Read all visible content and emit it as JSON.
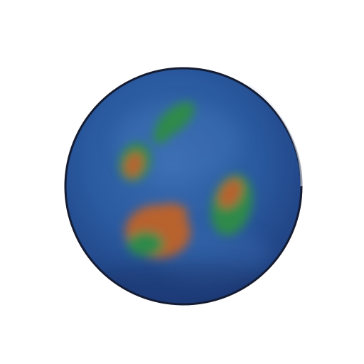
{
  "scene": {
    "subject": "planet",
    "background_color": "#ffffff",
    "colors": {
      "ocean_dark": "#1f3f7e",
      "ocean_mid": "#2a5aa0",
      "ocean_light": "#3a6cb2",
      "outline": "#141c33",
      "land_green": "#2f8a48",
      "land_orange": "#b8622e"
    }
  }
}
